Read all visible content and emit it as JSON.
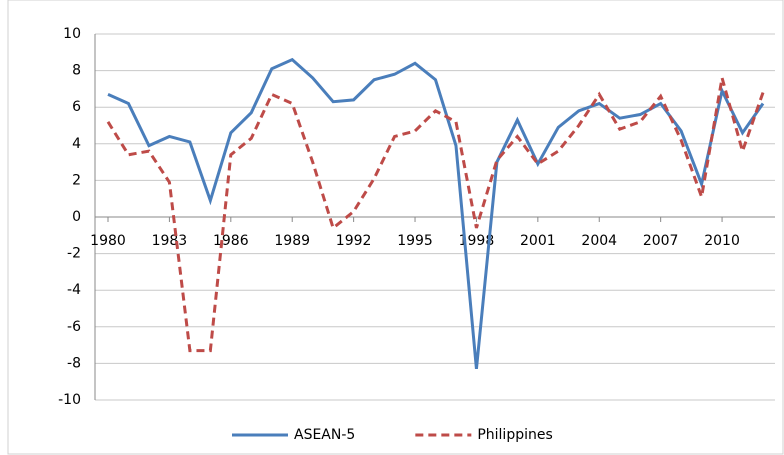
{
  "chart_data": {
    "type": "line",
    "x": [
      1980,
      1981,
      1982,
      1983,
      1984,
      1985,
      1986,
      1987,
      1988,
      1989,
      1990,
      1991,
      1992,
      1993,
      1994,
      1995,
      1996,
      1997,
      1998,
      1999,
      2000,
      2001,
      2002,
      2003,
      2004,
      2005,
      2006,
      2007,
      2008,
      2009,
      2010,
      2011,
      2012
    ],
    "series": [
      {
        "name": "ASEAN-5",
        "color": "#4a7ebb",
        "line_style": "solid",
        "values": [
          6.7,
          6.2,
          3.9,
          4.4,
          4.1,
          0.9,
          4.6,
          5.7,
          8.1,
          8.6,
          7.6,
          6.3,
          6.4,
          7.5,
          7.8,
          8.4,
          7.5,
          3.9,
          -8.3,
          3.0,
          5.3,
          2.9,
          4.9,
          5.8,
          6.2,
          5.4,
          5.6,
          6.2,
          4.7,
          1.8,
          6.9,
          4.6,
          6.2
        ]
      },
      {
        "name": "Philippines",
        "color": "#be4b48",
        "line_style": "dashed",
        "values": [
          5.2,
          3.4,
          3.6,
          1.9,
          -7.3,
          -7.3,
          3.4,
          4.3,
          6.7,
          6.2,
          3.0,
          -0.6,
          0.3,
          2.1,
          4.4,
          4.7,
          5.8,
          5.2,
          -0.6,
          3.1,
          4.4,
          2.9,
          3.6,
          5.0,
          6.7,
          4.8,
          5.2,
          6.6,
          4.2,
          1.1,
          7.6,
          3.6,
          6.8
        ]
      }
    ],
    "xlim": [
      1980,
      2012
    ],
    "xticks": [
      1980,
      1983,
      1986,
      1989,
      1992,
      1995,
      1998,
      2001,
      2004,
      2007,
      2010
    ],
    "ylim": [
      -10,
      10
    ],
    "yticks": [
      -10,
      -8,
      -6,
      -4,
      -2,
      0,
      2,
      4,
      6,
      8,
      10
    ],
    "grid": true,
    "legend": "bottom"
  }
}
